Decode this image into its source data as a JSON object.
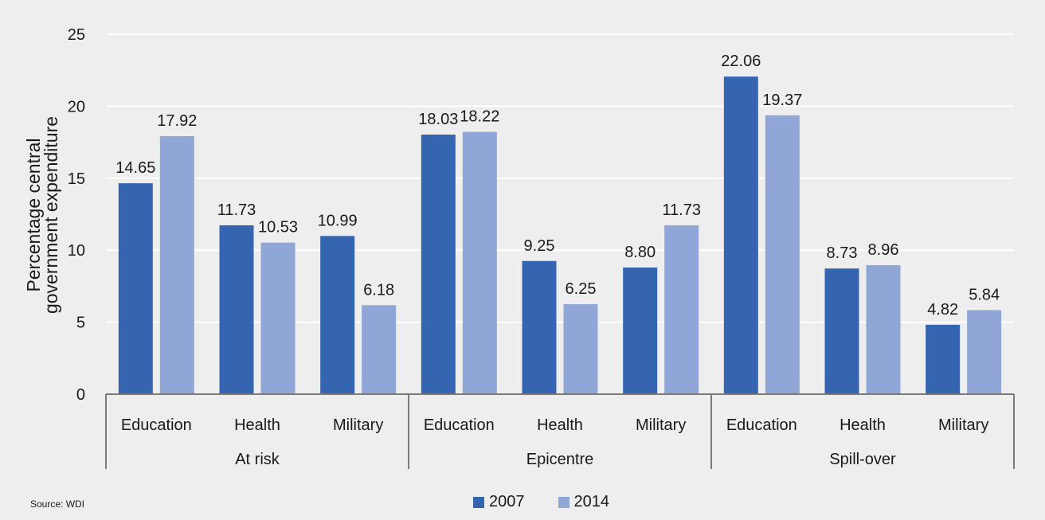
{
  "chart_data": {
    "type": "bar",
    "title": "",
    "ylabel": "Percentage central government expenditure",
    "ylabel_lines": [
      "Percentage central",
      "government expenditure"
    ],
    "ylim": [
      0,
      25
    ],
    "yticks": [
      "0",
      "5",
      "10",
      "15",
      "20",
      "25"
    ],
    "grid": true,
    "legend_placement": "bottom",
    "groups": [
      {
        "name": "At risk",
        "categories": [
          "Education",
          "Health",
          "Military"
        ]
      },
      {
        "name": "Epicentre",
        "categories": [
          "Education",
          "Health",
          "Military"
        ]
      },
      {
        "name": "Spill-over",
        "categories": [
          "Education",
          "Health",
          "Military"
        ]
      }
    ],
    "series": [
      {
        "name": "2007",
        "color": "#3565b0",
        "values": [
          14.65,
          11.73,
          10.99,
          18.03,
          9.25,
          8.8,
          22.06,
          8.73,
          4.82
        ],
        "labels": [
          "14.65",
          "11.73",
          "10.99",
          "18.03",
          "9.25",
          "8.80",
          "22.06",
          "8.73",
          "4.82"
        ]
      },
      {
        "name": "2014",
        "color": "#8fa6d6",
        "values": [
          17.92,
          10.53,
          6.18,
          18.22,
          6.25,
          11.73,
          19.37,
          8.96,
          5.84
        ],
        "labels": [
          "17.92",
          "10.53",
          "6.18",
          "18.22",
          "6.25",
          "11.73",
          "19.37",
          "8.96",
          "5.84"
        ]
      }
    ]
  },
  "source": "Source: WDI",
  "colors": {
    "background": "#eeeeee",
    "grid": "#ffffff",
    "axis": "#7a7a7a"
  }
}
